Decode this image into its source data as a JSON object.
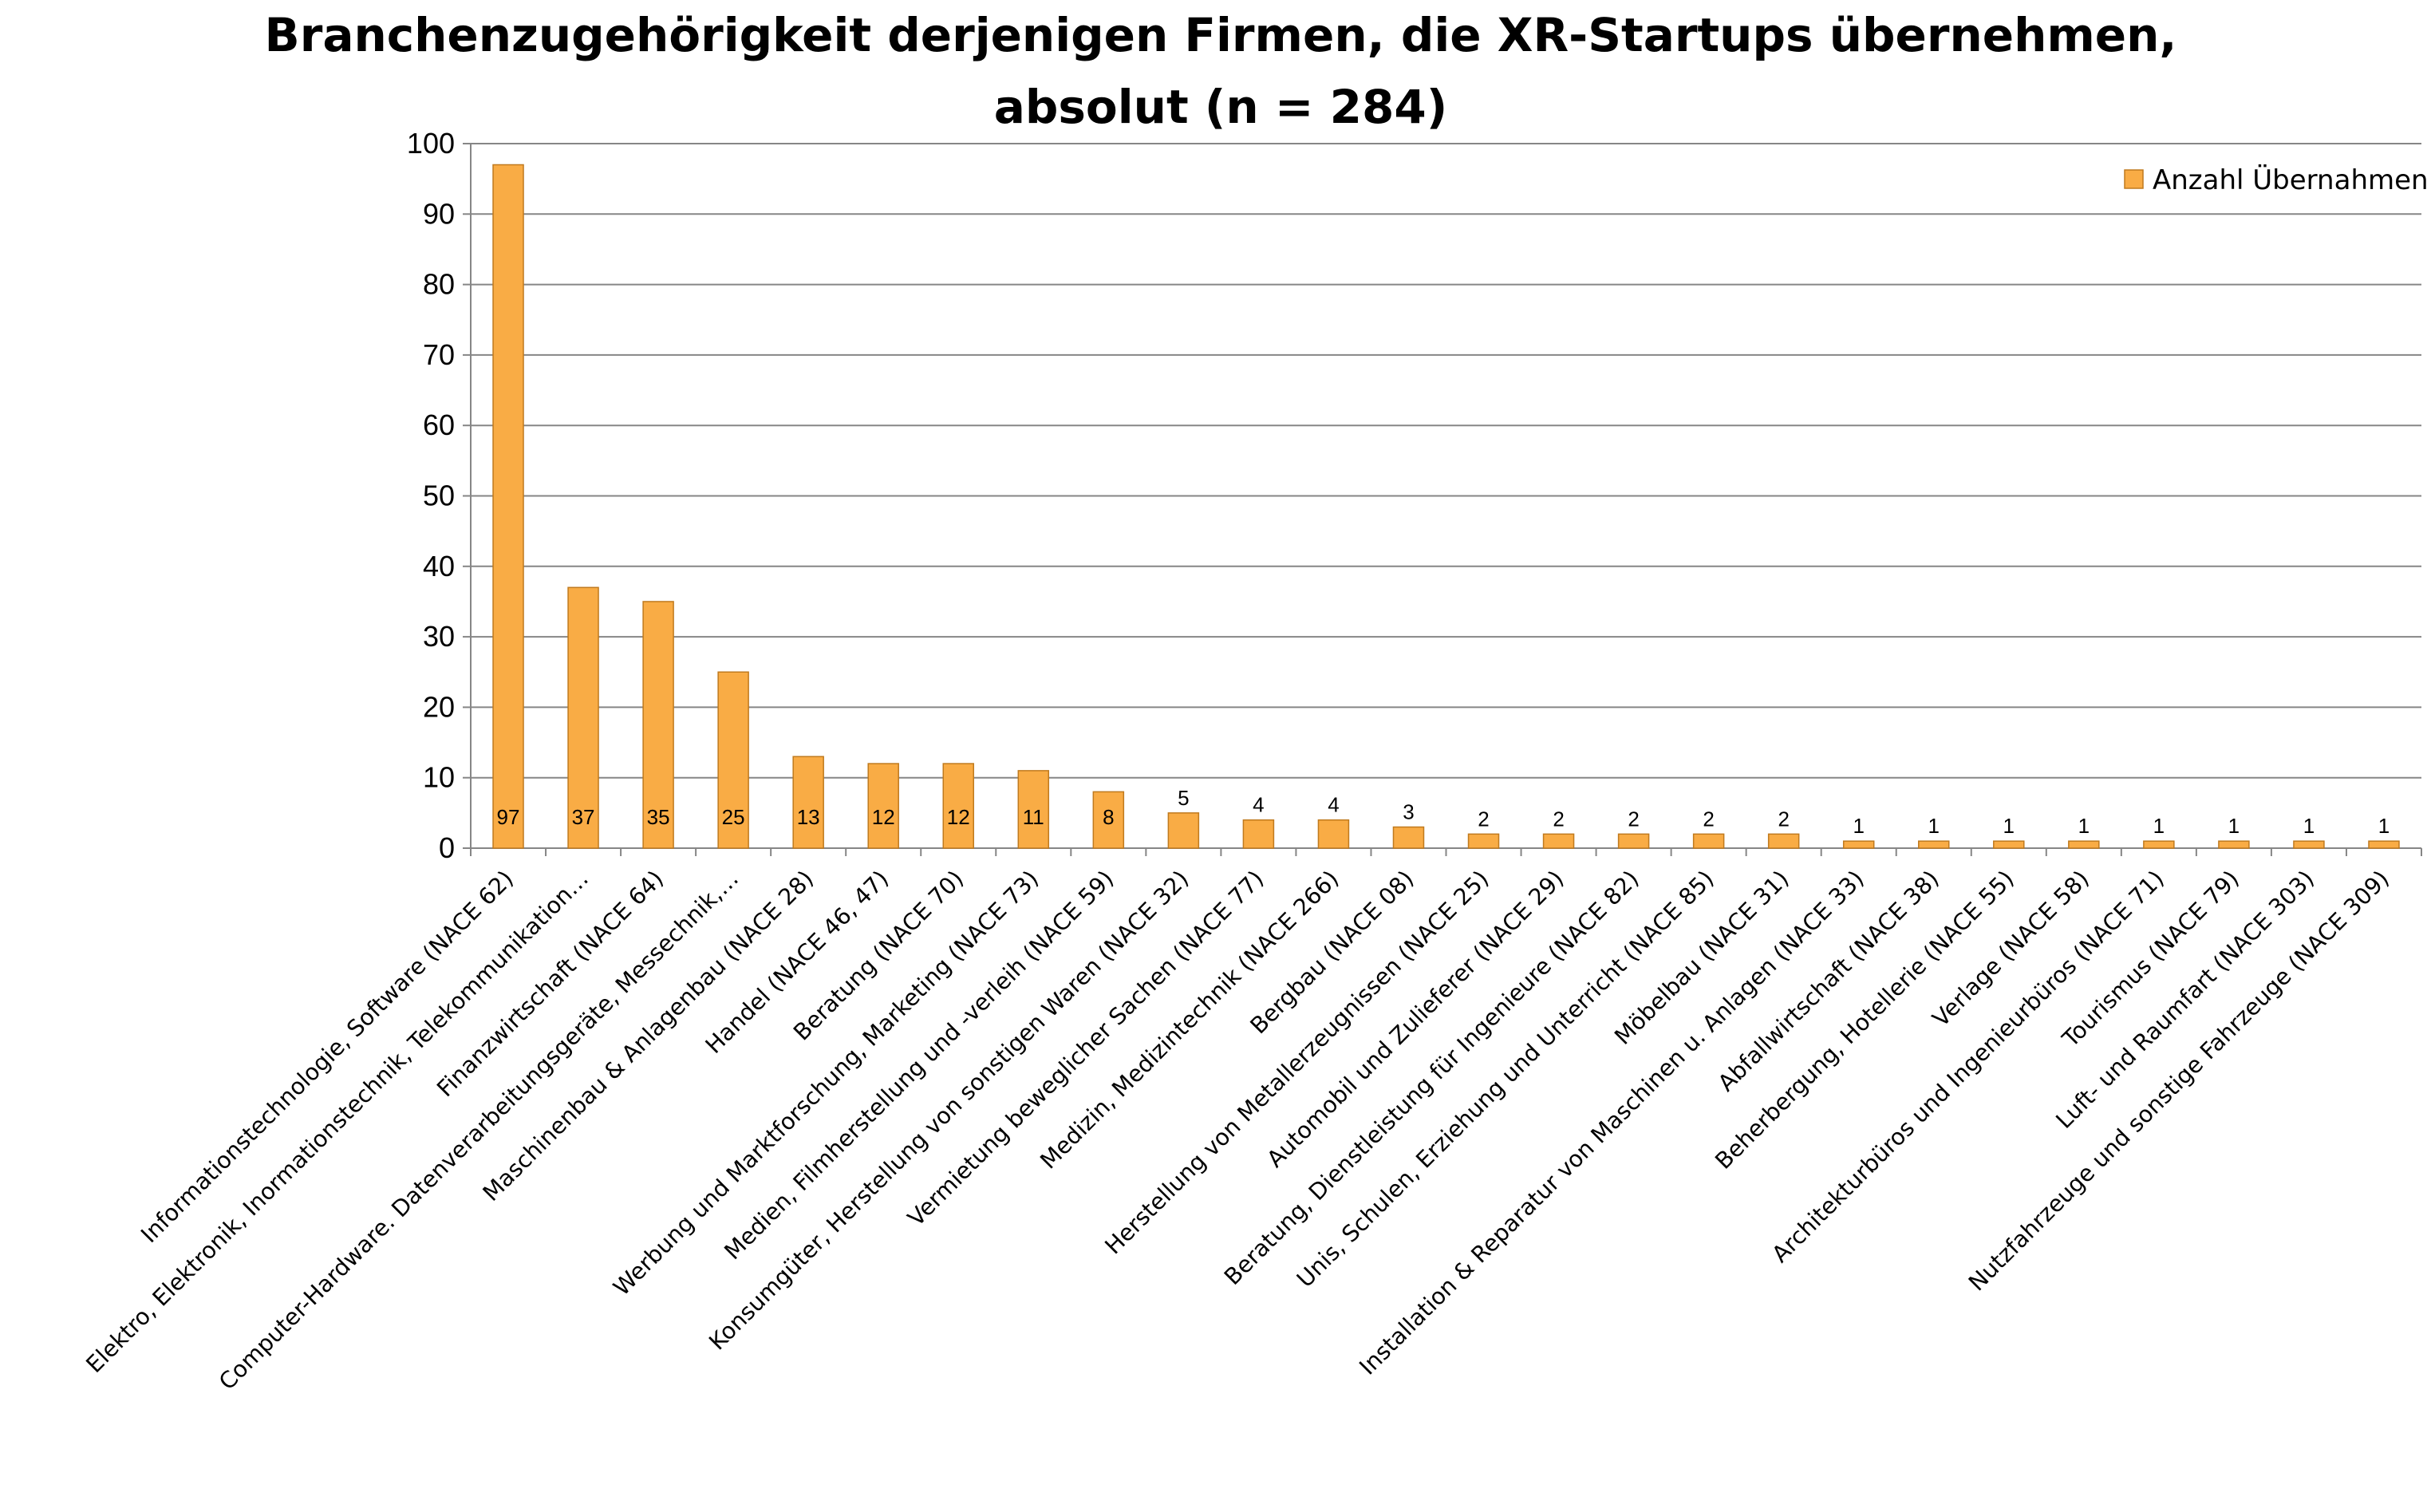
{
  "chart_data": {
    "type": "bar",
    "title_lines": [
      "Branchenzugehörigkeit derjenigen Firmen, die XR-Startups übernehmen,",
      "absolut (n = 284)"
    ],
    "xlabel": "",
    "ylabel": "",
    "ylim": [
      0,
      100
    ],
    "yticks": [
      "0",
      "10",
      "20",
      "30",
      "40",
      "50",
      "60",
      "70",
      "80",
      "90",
      "100"
    ],
    "grid": true,
    "legend_position": "top-right",
    "categories": [
      "Informationstechnologie, Software (NACE 62)",
      "Elektro, Elektronik, Inormationstechnik, Telekommunikation…",
      "Finanzwirtschaft (NACE 64)",
      "Computer-Hardware. Datenverarbeitungsgeräte, Messechnik,…",
      "Maschinenbau & Anlagenbau (NACE 28)",
      "Handel (NACE  46, 47)",
      "Beratung (NACE 70)",
      "Werbung und Marktforschung, Marketing (NACE 73)",
      "Medien, Filmherstellung und -verleih (NACE 59)",
      "Konsumgüter, Herstellung von sonstigen Waren (NACE 32)",
      "Vermietung beweglicher Sachen (NACE 77)",
      "Medizin, Medizintechnik (NACE 266)",
      "Bergbau (NACE 08)",
      "Herstellung von Metallerzeugnissen (NACE 25)",
      "Automobil und Zulieferer (NACE 29)",
      "Beratung, Dienstleistung für Ingenieure (NACE 82)",
      "Unis, Schulen, Erziehung und Unterricht (NACE 85)",
      "Möbelbau (NACE 31)",
      "Installation & Reparatur von Maschinen u. Anlagen (NACE 33)",
      "Abfallwirtschaft (NACE 38)",
      "Beherbergung, Hotellerie (NACE 55)",
      "Verlage (NACE 58)",
      "Architekturbüros und Ingenieurbüros (NACE 71)",
      "Tourismus (NACE 79)",
      "Luft- und Raumfart (NACE 303)",
      "Nutzfahrzeuge und sonstige Fahrzeuge (NACE 309)"
    ],
    "series": [
      {
        "name": "Anzahl Übernahmen",
        "color": "#F9AC45",
        "values": [
          97,
          37,
          35,
          25,
          13,
          12,
          12,
          11,
          8,
          5,
          4,
          4,
          3,
          2,
          2,
          2,
          2,
          2,
          1,
          1,
          1,
          1,
          1,
          1,
          1,
          1
        ]
      }
    ]
  }
}
